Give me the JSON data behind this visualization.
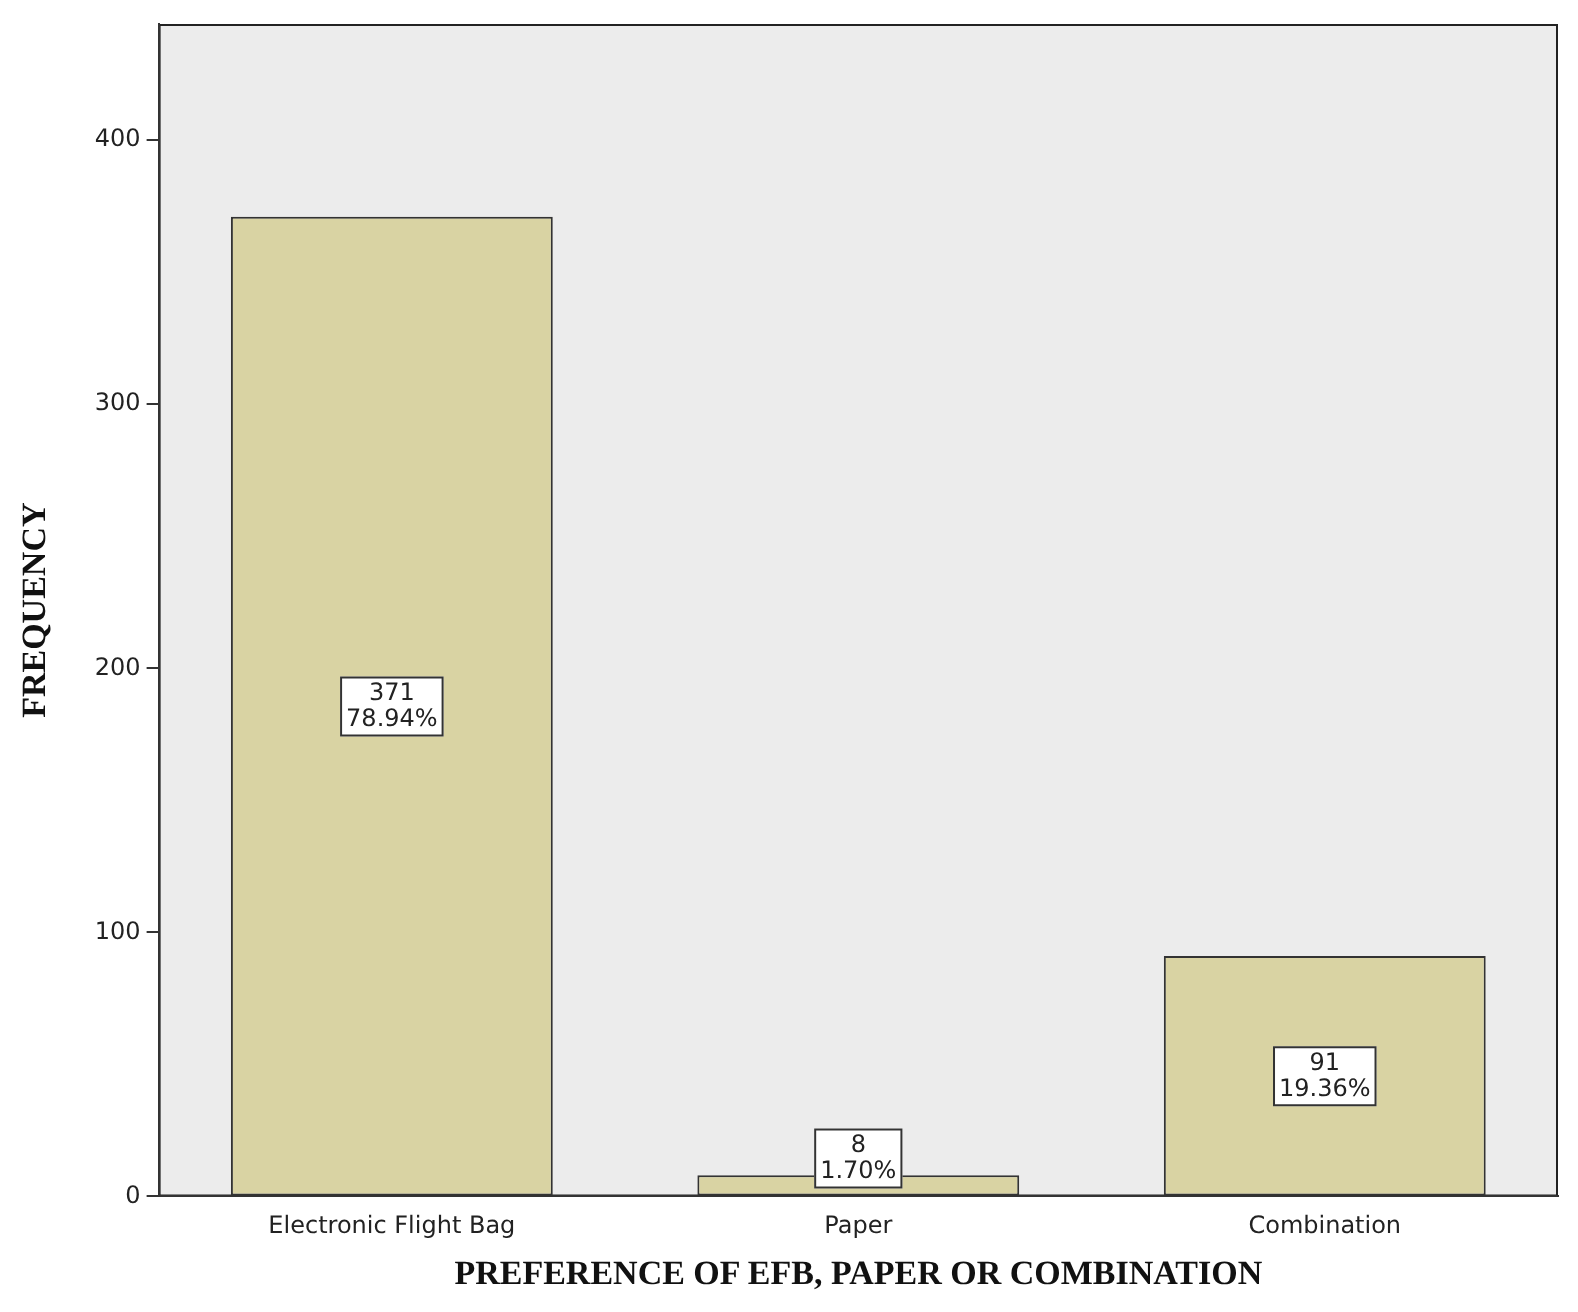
{
  "chart_data": {
    "type": "bar",
    "xlabel": "PREFERENCE OF EFB, PAPER OR COMBINATION",
    "ylabel": "FREQUENCY",
    "categories": [
      "Electronic Flight Bag",
      "Paper",
      "Combination"
    ],
    "values": [
      371,
      8,
      91
    ],
    "value_labels": [
      "371\n78.94%",
      "8\n1.70%",
      "91\n19.36%"
    ],
    "color": "#d9d3a3",
    "ylim": [
      0,
      444
    ],
    "yticks": [
      0,
      100,
      200,
      300,
      400
    ],
    "grid": false,
    "legend": false
  }
}
